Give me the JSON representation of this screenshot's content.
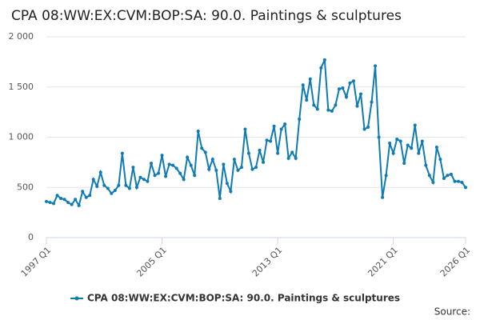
{
  "chart_data": {
    "type": "line",
    "title": "CPA 08:WW:EX:CVM:BOP:SA: 90.0. Paintings & sculptures",
    "source": "Source:",
    "categories": [
      "1997 Q1",
      null,
      null,
      null,
      null,
      null,
      null,
      null,
      null,
      null,
      null,
      null,
      null,
      null,
      null,
      null,
      null,
      null,
      null,
      null,
      null,
      null,
      null,
      null,
      null,
      null,
      null,
      null,
      null,
      null,
      null,
      null,
      "2005 Q1",
      null,
      null,
      null,
      null,
      null,
      null,
      null,
      null,
      null,
      null,
      null,
      null,
      null,
      null,
      null,
      null,
      null,
      null,
      null,
      null,
      null,
      null,
      null,
      null,
      null,
      null,
      null,
      null,
      null,
      null,
      null,
      "2013 Q1",
      null,
      null,
      null,
      null,
      null,
      null,
      null,
      null,
      null,
      null,
      null,
      null,
      null,
      null,
      null,
      null,
      null,
      null,
      null,
      null,
      null,
      null,
      null,
      null,
      null,
      null,
      null,
      null,
      null,
      null,
      null,
      "2021 Q1",
      null,
      null,
      null,
      null,
      null,
      null,
      null,
      null,
      null,
      null,
      null,
      null,
      null,
      null,
      null,
      null,
      null,
      null,
      null,
      "2026 Q1"
    ],
    "series": [
      {
        "name": "CPA 08:WW:EX:CVM:BOP:SA: 90.0. Paintings & sculptures",
        "color": "#0e7bb5",
        "values": [
          360,
          350,
          340,
          420,
          390,
          380,
          350,
          330,
          380,
          320,
          460,
          400,
          420,
          580,
          510,
          650,
          520,
          490,
          440,
          470,
          520,
          840,
          520,
          490,
          700,
          500,
          600,
          580,
          560,
          740,
          620,
          640,
          820,
          610,
          730,
          720,
          690,
          640,
          580,
          800,
          720,
          620,
          1060,
          890,
          850,
          680,
          780,
          670,
          390,
          730,
          540,
          460,
          780,
          670,
          700,
          1080,
          840,
          680,
          700,
          870,
          750,
          970,
          960,
          1110,
          840,
          1080,
          1130,
          790,
          850,
          790,
          1180,
          1520,
          1370,
          1580,
          1320,
          1280,
          1690,
          1770,
          1270,
          1260,
          1320,
          1480,
          1490,
          1400,
          1540,
          1560,
          1310,
          1430,
          1080,
          1100,
          1350,
          1710,
          1000,
          400,
          620,
          940,
          840,
          980,
          960,
          740,
          920,
          890,
          1120,
          840,
          960,
          720,
          620,
          550,
          900,
          780,
          590,
          620,
          630,
          560,
          560,
          550,
          500
        ]
      }
    ],
    "ylim": [
      0,
      2000
    ],
    "yticks": [
      0,
      500,
      {
        "value": 1000,
        "label": "1 000"
      },
      {
        "value": 1500,
        "label": "1 500"
      },
      {
        "value": 2000,
        "label": "2 000"
      }
    ],
    "grid": true
  }
}
